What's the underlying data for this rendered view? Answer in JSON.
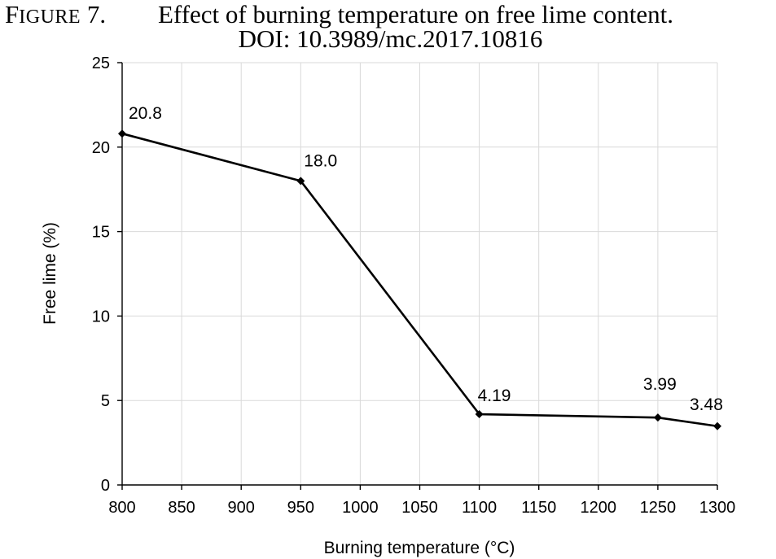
{
  "figure": {
    "label_first": "F",
    "label_rest": "IGURE",
    "label_number": "7.",
    "title": "Effect of burning temperature on free lime content.",
    "doi": "DOI: 10.3989/mc.2017.10816"
  },
  "chart_data": {
    "type": "line",
    "xlabel": "Burning temperature (°C)",
    "ylabel": "Free lime (%)",
    "xlim": [
      800,
      1300
    ],
    "ylim": [
      0,
      25
    ],
    "xticks": [
      800,
      850,
      900,
      950,
      1000,
      1050,
      1100,
      1150,
      1200,
      1250,
      1300
    ],
    "yticks": [
      0,
      5,
      10,
      15,
      20,
      25
    ],
    "grid": true,
    "legend": "none",
    "line_color": "#000000",
    "grid_color": "#d9d9d9",
    "series": [
      {
        "marker": "diamond",
        "points": [
          {
            "x": 800,
            "y": 20.8,
            "label": "20.8"
          },
          {
            "x": 950,
            "y": 18.0,
            "label": "18.0"
          },
          {
            "x": 1100,
            "y": 4.19,
            "label": "4.19"
          },
          {
            "x": 1250,
            "y": 3.99,
            "label": "3.99"
          },
          {
            "x": 1300,
            "y": 3.48,
            "label": "3.48"
          }
        ]
      }
    ]
  }
}
